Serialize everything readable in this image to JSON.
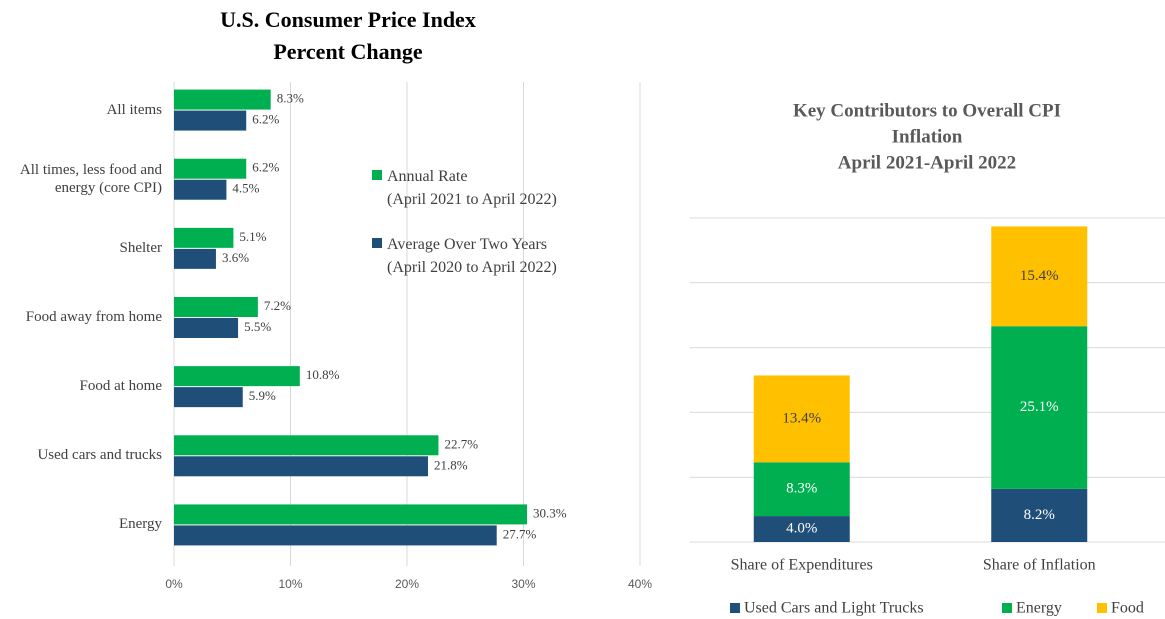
{
  "chart_data": [
    {
      "type": "hbar",
      "title": [
        "U.S. Consumer Price Index",
        "Percent Change"
      ],
      "categories": [
        "All items",
        "All times, less food and energy (core CPI)",
        "Shelter",
        "Food away from home",
        "Food at home",
        "Used cars and trucks",
        "Energy"
      ],
      "series": [
        {
          "name": "Annual Rate (April 2021 to April 2022)",
          "color": "#00b050",
          "values": [
            8.3,
            6.2,
            5.1,
            7.2,
            10.8,
            22.7,
            30.3
          ],
          "value_labels": [
            "8.3%",
            "6.2%",
            "5.1%",
            "7.2%",
            "10.8%",
            "22.7%",
            "30.3%"
          ]
        },
        {
          "name": "Average Over Two Years (April 2020 to April 2022)",
          "color": "#1f4e79",
          "values": [
            6.2,
            4.5,
            3.6,
            5.5,
            5.9,
            21.8,
            27.7
          ],
          "value_labels": [
            "6.2%",
            "4.5%",
            "3.6%",
            "5.5%",
            "5.9%",
            "21.8%",
            "27.7%"
          ]
        }
      ],
      "xlim": [
        0,
        40
      ],
      "xticks": [
        {
          "value": 0,
          "label": "0%"
        },
        {
          "value": 10,
          "label": "10%"
        },
        {
          "value": 20,
          "label": "20%"
        },
        {
          "value": 30,
          "label": "30%"
        },
        {
          "value": 40,
          "label": "40%"
        }
      ],
      "grid": true
    },
    {
      "type": "stacked_bar",
      "title": [
        "Key Contributors to Overall CPI",
        "Inflation",
        "April 2021-April 2022"
      ],
      "categories": [
        "Share of Expenditures",
        "Share of Inflation"
      ],
      "series": [
        {
          "name": "Used Cars and Light Trucks",
          "color": "#1f4e79",
          "values": [
            4.0,
            8.2
          ],
          "value_labels": [
            "4.0%",
            "8.2%"
          ]
        },
        {
          "name": "Energy",
          "color": "#00b050",
          "values": [
            8.3,
            25.1
          ],
          "value_labels": [
            "8.3%",
            "25.1%"
          ]
        },
        {
          "name": "Food",
          "color": "#ffc000",
          "values": [
            13.4,
            15.4
          ],
          "value_labels": [
            "13.4%",
            "15.4%"
          ]
        }
      ],
      "ylim": [
        0,
        50
      ],
      "yticks": [
        0,
        10,
        20,
        30,
        40,
        50
      ],
      "grid": true,
      "legend": "bottom"
    }
  ]
}
